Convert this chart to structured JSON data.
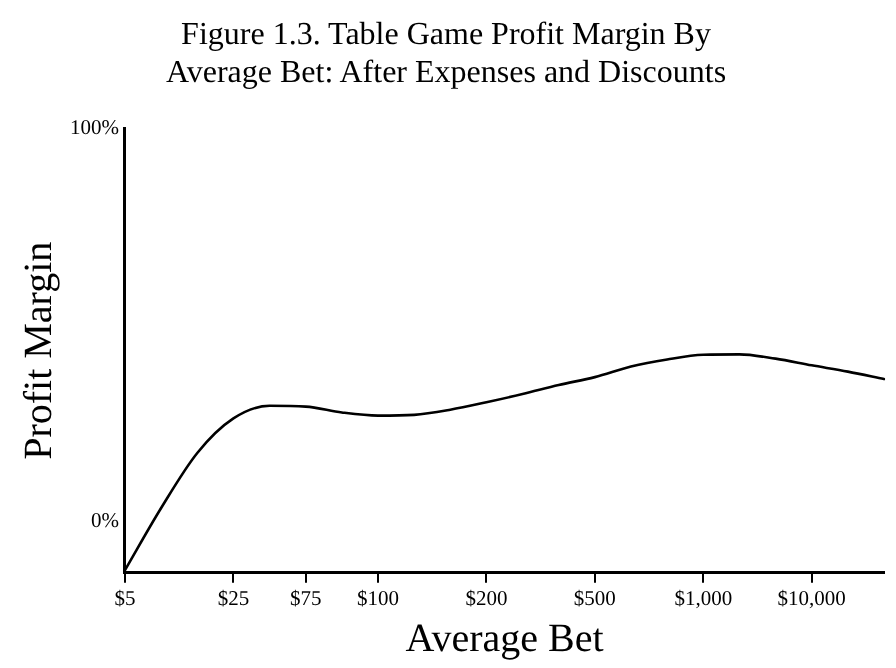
{
  "chart_data": {
    "type": "line",
    "title": "Figure 1.3. Table Game Profit Margin By\nAverage Bet: After Expenses and Discounts",
    "xlabel": "Average Bet",
    "ylabel": "Profit Margin",
    "categories": [
      "$5",
      null,
      null,
      "$25",
      null,
      "$75",
      null,
      "$100",
      null,
      null,
      "$200",
      null,
      null,
      "$500",
      null,
      null,
      "$1,000",
      null,
      null,
      "$10,000",
      null,
      null
    ],
    "series": [
      {
        "color": "#000000",
        "values": [
          -12.3,
          3.5,
          17.5,
          26.3,
          29.5,
          29.3,
          27.8,
          27.0,
          27.2,
          28.5,
          30.4,
          32.5,
          34.8,
          36.8,
          39.5,
          41.3,
          42.5,
          42.6,
          41.5,
          39.8,
          38.2,
          36.3
        ]
      }
    ],
    "ylim": [
      -13,
      100
    ],
    "yticks": [
      {
        "value": 0,
        "label": "0%"
      },
      {
        "value": 100,
        "label": "100%"
      }
    ],
    "grid": false,
    "legend": false,
    "marker": "none",
    "line_style": "solid"
  }
}
